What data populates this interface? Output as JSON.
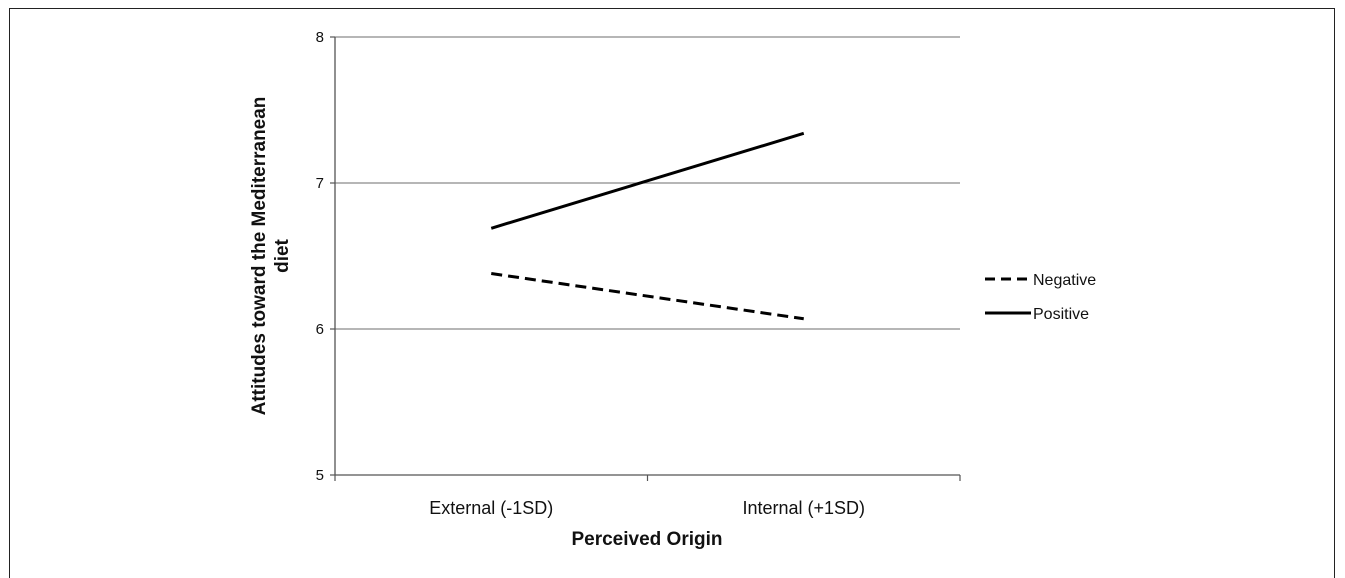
{
  "chart_data": {
    "type": "line",
    "title": "",
    "xlabel": "Perceived Origin",
    "ylabel_lines": [
      "Attitudes toward the Mediterranean",
      "diet"
    ],
    "categories": [
      "External (-1SD)",
      "Internal (+1SD)"
    ],
    "ylim": [
      5,
      8
    ],
    "yticks": [
      5,
      6,
      7,
      8
    ],
    "grid": true,
    "legend_position": "right",
    "series": [
      {
        "name": "Negative",
        "values": [
          6.38,
          6.07
        ],
        "style": "dashed",
        "color": "#000000"
      },
      {
        "name": "Positive",
        "values": [
          6.69,
          7.34
        ],
        "style": "solid",
        "color": "#000000"
      }
    ]
  }
}
